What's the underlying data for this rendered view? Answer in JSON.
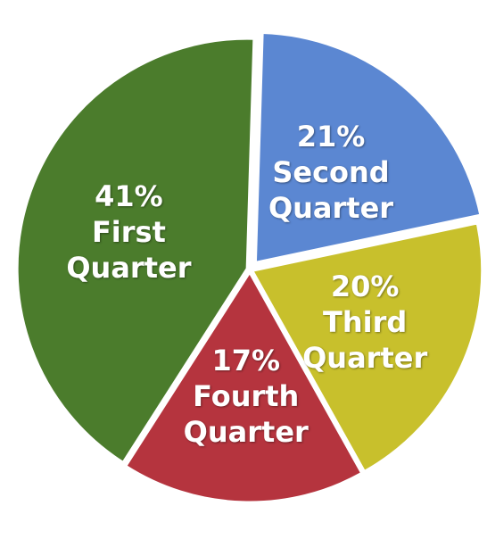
{
  "chart_data": {
    "type": "pie",
    "categories": [
      "First Quarter",
      "Second Quarter",
      "Third Quarter",
      "Fourth Quarter"
    ],
    "values": [
      41,
      21,
      20,
      17
    ],
    "value_labels": [
      "41%",
      "21%",
      "20%",
      "17%"
    ],
    "colors": [
      "#4b7c2c",
      "#5b87d2",
      "#c8c02c",
      "#b5343e"
    ]
  }
}
